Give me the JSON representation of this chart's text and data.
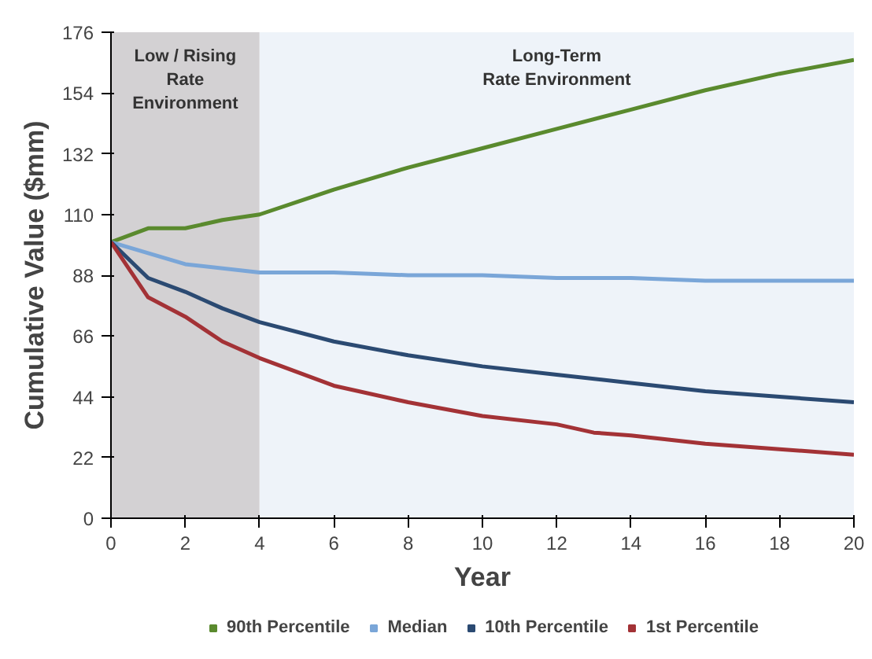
{
  "chart_data": {
    "type": "line",
    "xlabel": "Year",
    "ylabel": "Cumulative Value ($mm)",
    "xlim": [
      0,
      20
    ],
    "ylim": [
      0,
      176
    ],
    "xticks": [
      0,
      2,
      4,
      6,
      8,
      10,
      12,
      14,
      16,
      18,
      20
    ],
    "yticks": [
      0,
      22,
      44,
      66,
      88,
      110,
      132,
      154,
      176
    ],
    "grid": false,
    "legend": "bottom",
    "line_style": "solid",
    "marker": "none",
    "bands": [
      {
        "axis": "x",
        "from": 0,
        "to": 4,
        "label": "Low / Rising\nRate\nEnvironment",
        "color": "#d3d1d3"
      },
      {
        "axis": "x",
        "from": 4,
        "to": 20,
        "label": "Long-Term\nRate Environment",
        "color": "#eef3f9"
      }
    ],
    "series": [
      {
        "name": "90th Percentile",
        "color": "#5a8a2e",
        "x": [
          0,
          1,
          2,
          3,
          4,
          6,
          8,
          10,
          12,
          14,
          16,
          18,
          20
        ],
        "values": [
          100,
          105,
          105,
          108,
          110,
          119,
          127,
          134,
          141,
          148,
          155,
          161,
          166
        ]
      },
      {
        "name": "Median",
        "color": "#7aa6d8",
        "x": [
          0,
          2,
          4,
          6,
          8,
          10,
          12,
          14,
          16,
          18,
          20
        ],
        "values": [
          100,
          92,
          89,
          89,
          88,
          88,
          87,
          87,
          86,
          86,
          86
        ]
      },
      {
        "name": "10th Percentile",
        "color": "#2b4a72",
        "x": [
          0,
          1,
          2,
          3,
          4,
          6,
          8,
          10,
          12,
          14,
          16,
          18,
          20
        ],
        "values": [
          100,
          87,
          82,
          76,
          71,
          64,
          59,
          55,
          52,
          49,
          46,
          44,
          42
        ]
      },
      {
        "name": "1st Percentile",
        "color": "#a33236",
        "x": [
          0,
          1,
          2,
          3,
          4,
          6,
          8,
          10,
          12,
          13,
          14,
          16,
          18,
          20
        ],
        "values": [
          100,
          80,
          73,
          64,
          58,
          48,
          42,
          37,
          34,
          31,
          30,
          27,
          25,
          23
        ]
      }
    ]
  }
}
